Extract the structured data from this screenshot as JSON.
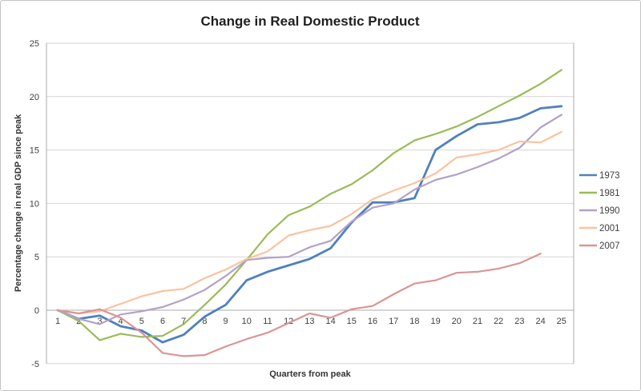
{
  "window": {
    "background": "#ffffff",
    "border_color": "#c4c4c4"
  },
  "chart_data": {
    "type": "line",
    "title": "Change in Real Domestic Product",
    "xlabel": "Quarters from peak",
    "ylabel": "Percentage change in real GDP since peak",
    "x": [
      1,
      2,
      3,
      4,
      5,
      6,
      7,
      8,
      9,
      10,
      11,
      12,
      13,
      14,
      15,
      16,
      17,
      18,
      19,
      20,
      21,
      22,
      23,
      24,
      25
    ],
    "x_tick_labels": [
      "1",
      "2",
      "3",
      "4",
      "5",
      "6",
      "7",
      "8",
      "9",
      "10",
      "11",
      "12",
      "13",
      "14",
      "15",
      "16",
      "17",
      "18",
      "19",
      "20",
      "21",
      "22",
      "23",
      "24",
      "25"
    ],
    "y_ticks": [
      -5,
      0,
      5,
      10,
      15,
      20,
      25
    ],
    "ylim": [
      -5,
      25
    ],
    "grid": "horizontal",
    "legend_position": "right",
    "gridline_color": "#d6d6d6",
    "axis_color": "#ababab",
    "text_color": "#3f3f3f",
    "series": [
      {
        "name": "1973",
        "color": "#4F81BD",
        "width": 2.8,
        "values": [
          0,
          -0.8,
          -0.5,
          -1.5,
          -1.9,
          -3.0,
          -2.3,
          -0.6,
          0.5,
          2.8,
          3.6,
          4.2,
          4.8,
          5.8,
          8.2,
          10.1,
          10.1,
          10.5,
          15.0,
          16.3,
          17.4,
          17.6,
          18.0,
          18.9,
          19.1
        ]
      },
      {
        "name": "1981",
        "color": "#9BBB59",
        "width": 2.2,
        "values": [
          0,
          -1.0,
          -2.8,
          -2.2,
          -2.5,
          -2.4,
          -1.3,
          0.5,
          2.4,
          4.7,
          7.1,
          8.9,
          9.7,
          10.9,
          11.8,
          13.1,
          14.7,
          15.9,
          16.5,
          17.2,
          18.1,
          19.1,
          20.1,
          21.2,
          22.5
        ]
      },
      {
        "name": "1990",
        "color": "#B3A2C7",
        "width": 2.2,
        "values": [
          0,
          -0.8,
          -1.3,
          -0.4,
          -0.1,
          0.3,
          1.0,
          1.9,
          3.2,
          4.7,
          4.9,
          5.0,
          5.9,
          6.5,
          8.3,
          9.6,
          10.0,
          11.3,
          12.2,
          12.7,
          13.4,
          14.2,
          15.2,
          17.1,
          18.3
        ]
      },
      {
        "name": "2001",
        "color": "#FAC39E",
        "width": 2.2,
        "values": [
          0,
          -0.3,
          -0.1,
          0.6,
          1.3,
          1.8,
          2.0,
          3.0,
          3.8,
          4.8,
          5.5,
          7.0,
          7.5,
          7.9,
          9.0,
          10.4,
          11.2,
          11.9,
          12.8,
          14.3,
          14.6,
          15.0,
          15.8,
          15.7,
          16.7
        ]
      },
      {
        "name": "2007",
        "color": "#D99694",
        "width": 2.2,
        "values": [
          0,
          -0.3,
          0.1,
          -0.7,
          -2.1,
          -4.0,
          -4.3,
          -4.2,
          -3.4,
          -2.7,
          -2.1,
          -1.2,
          -0.3,
          -0.7,
          0.1,
          0.4,
          1.5,
          2.5,
          2.8,
          3.5,
          3.6,
          3.9,
          4.4,
          5.3
        ]
      }
    ]
  }
}
